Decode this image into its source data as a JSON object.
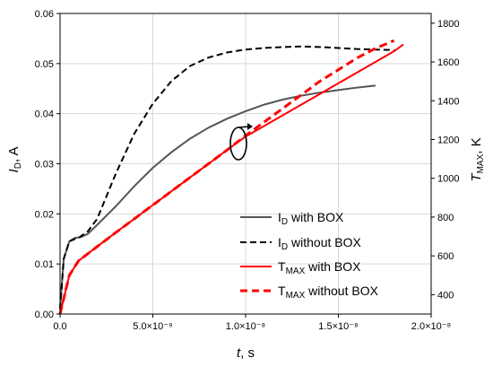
{
  "chart_data": {
    "type": "line",
    "x_axis": {
      "label_italic": "t",
      "label_rest": ", s",
      "range": [
        0,
        2e-08
      ],
      "ticks": [
        {
          "value": 0,
          "label": "0.0"
        },
        {
          "value": 5e-09,
          "label": "5.0×10⁻⁹"
        },
        {
          "value": 1e-08,
          "label": "1.0×10⁻⁸"
        },
        {
          "value": 1.5e-08,
          "label": "1.5×10⁻⁸"
        },
        {
          "value": 2e-08,
          "label": "2.0×10⁻⁸"
        }
      ]
    },
    "y_left": {
      "label_main": "I",
      "label_sub": "D",
      "label_rest": ", A",
      "range": [
        0,
        0.06
      ],
      "ticks": [
        {
          "value": 0,
          "label": "0.00"
        },
        {
          "value": 0.01,
          "label": "0.01"
        },
        {
          "value": 0.02,
          "label": "0.02"
        },
        {
          "value": 0.03,
          "label": "0.03"
        },
        {
          "value": 0.04,
          "label": "0.04"
        },
        {
          "value": 0.05,
          "label": "0.05"
        },
        {
          "value": 0.06,
          "label": "0.06"
        }
      ]
    },
    "y_right": {
      "label_main": "T",
      "label_sub": "MAX",
      "label_rest": ", K",
      "range": [
        300,
        1850
      ],
      "ticks": [
        {
          "value": 400,
          "label": "400"
        },
        {
          "value": 600,
          "label": "600"
        },
        {
          "value": 800,
          "label": "800"
        },
        {
          "value": 1000,
          "label": "1000"
        },
        {
          "value": 1200,
          "label": "1200"
        },
        {
          "value": 1400,
          "label": "1400"
        },
        {
          "value": 1600,
          "label": "1600"
        },
        {
          "value": 1800,
          "label": "1800"
        }
      ]
    },
    "grid": true,
    "legend_position": "bottom-right",
    "series": [
      {
        "name_main": "I",
        "name_sub": "D",
        "name_rest": " with BOX",
        "axis": "left",
        "color": "#555555",
        "dash": "solid",
        "x": [
          0,
          2e-10,
          5e-10,
          8e-10,
          1e-09,
          1.2e-09,
          1.5e-09,
          2e-09,
          3e-09,
          4e-09,
          5e-09,
          6e-09,
          7e-09,
          8e-09,
          9e-09,
          1e-08,
          1.1e-08,
          1.2e-08,
          1.3e-08,
          1.4e-08,
          1.5e-08,
          1.6e-08,
          1.7e-08
        ],
        "y": [
          0.001,
          0.011,
          0.0145,
          0.0152,
          0.0153,
          0.0155,
          0.016,
          0.0178,
          0.0215,
          0.0255,
          0.0292,
          0.0323,
          0.035,
          0.0372,
          0.039,
          0.0405,
          0.0418,
          0.0428,
          0.0436,
          0.0442,
          0.0447,
          0.0452,
          0.0456
        ]
      },
      {
        "name_main": "I",
        "name_sub": "D",
        "name_rest": " without BOX",
        "axis": "left",
        "color": "#000000",
        "dash": "dashed",
        "x": [
          0,
          2e-10,
          5e-10,
          8e-10,
          1e-09,
          1.5e-09,
          2e-09,
          3e-09,
          4e-09,
          5e-09,
          6e-09,
          7e-09,
          8e-09,
          9e-09,
          1e-08,
          1.1e-08,
          1.2e-08,
          1.3e-08,
          1.4e-08,
          1.5e-08,
          1.6e-08,
          1.7e-08,
          1.8e-08
        ],
        "y": [
          0.001,
          0.011,
          0.0145,
          0.015,
          0.0152,
          0.0165,
          0.019,
          0.028,
          0.036,
          0.042,
          0.0465,
          0.0495,
          0.0512,
          0.0522,
          0.0528,
          0.0531,
          0.0533,
          0.0534,
          0.0533,
          0.0531,
          0.0529,
          0.0528,
          0.0527
        ]
      },
      {
        "name_main": "T",
        "name_sub": "MAX",
        "name_rest": " with BOX",
        "axis": "right",
        "color": "#ff0000",
        "dash": "solid",
        "x": [
          0,
          5e-10,
          1e-09,
          2e-09,
          3e-09,
          4e-09,
          5e-09,
          6e-09,
          7e-09,
          8e-09,
          9e-09,
          1e-08,
          1.1e-08,
          1.2e-08,
          1.3e-08,
          1.4e-08,
          1.5e-08,
          1.6e-08,
          1.7e-08,
          1.8e-08,
          1.85e-08
        ],
        "y": [
          300,
          500,
          575,
          648,
          720,
          791,
          862,
          933,
          1004,
          1075,
          1146,
          1215,
          1270,
          1325,
          1380,
          1435,
          1490,
          1545,
          1600,
          1655,
          1690
        ]
      },
      {
        "name_main": "T",
        "name_sub": "MAX",
        "name_rest": " without BOX",
        "axis": "right",
        "color": "#ff0000",
        "dash": "dashed",
        "x": [
          0,
          5e-10,
          1e-09,
          2e-09,
          3e-09,
          4e-09,
          5e-09,
          6e-09,
          7e-09,
          8e-09,
          9e-09,
          1e-08,
          1.1e-08,
          1.2e-08,
          1.3e-08,
          1.4e-08,
          1.5e-08,
          1.6e-08,
          1.7e-08,
          1.8e-08
        ],
        "y": [
          300,
          500,
          575,
          648,
          720,
          791,
          862,
          933,
          1004,
          1075,
          1146,
          1220,
          1290,
          1360,
          1430,
          1500,
          1560,
          1620,
          1670,
          1710
        ]
      }
    ]
  }
}
